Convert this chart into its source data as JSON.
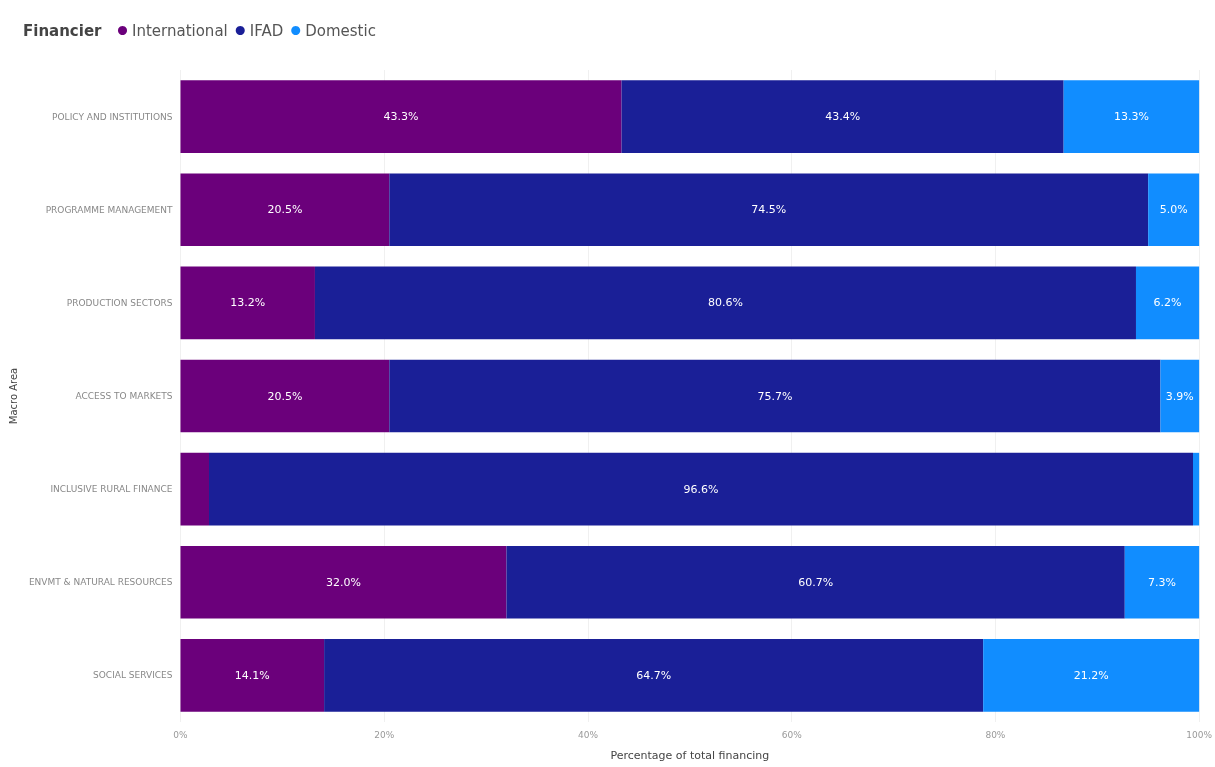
{
  "chart_data": {
    "type": "bar",
    "orientation": "horizontal",
    "stacked": true,
    "xlabel": "Percentage of total financing",
    "ylabel": "Macro Area",
    "legend_title": "Financier",
    "categories": [
      "POLICY AND INSTITUTIONS",
      "PROGRAMME MANAGEMENT",
      "PRODUCTION SECTORS",
      "ACCESS TO MARKETS",
      "INCLUSIVE RURAL FINANCE",
      "ENVMT & NATURAL RESOURCES",
      "SOCIAL SERVICES"
    ],
    "series": [
      {
        "name": "International",
        "color": "#6b007b",
        "values": [
          43.3,
          20.5,
          13.2,
          20.5,
          2.8,
          32.0,
          14.1
        ],
        "value_labels": [
          "43.3%",
          "20.5%",
          "13.2%",
          "20.5%",
          null,
          "32.0%",
          "14.1%"
        ]
      },
      {
        "name": "IFAD",
        "color": "#1a1f97",
        "values": [
          43.4,
          74.5,
          80.6,
          75.7,
          96.6,
          60.7,
          64.7
        ],
        "value_labels": [
          "43.4%",
          "74.5%",
          "80.6%",
          "75.7%",
          "96.6%",
          "60.7%",
          "64.7%"
        ]
      },
      {
        "name": "Domestic",
        "color": "#118dff",
        "values": [
          13.3,
          5.0,
          6.2,
          3.9,
          0.6,
          7.3,
          21.2
        ],
        "value_labels": [
          "13.3%",
          "5.0%",
          "6.2%",
          "3.9%",
          null,
          "7.3%",
          "21.2%"
        ]
      }
    ],
    "xlim": [
      0,
      100
    ],
    "xticks": [
      {
        "value": 0,
        "label": "0%"
      },
      {
        "value": 20,
        "label": "20%"
      },
      {
        "value": 40,
        "label": "40%"
      },
      {
        "value": 60,
        "label": "60%"
      },
      {
        "value": 80,
        "label": "80%"
      },
      {
        "value": 100,
        "label": "100%"
      }
    ],
    "grid": "x",
    "legend": "top left"
  }
}
